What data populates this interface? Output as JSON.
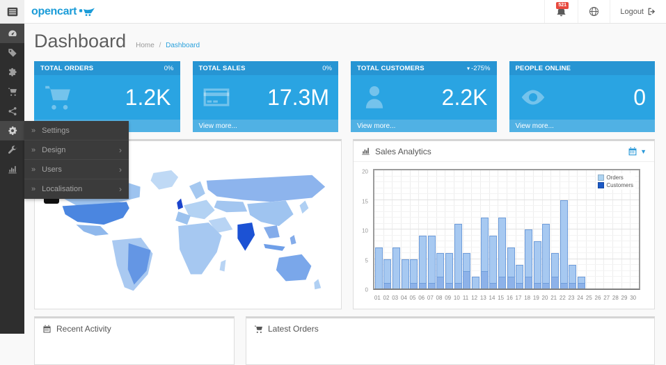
{
  "topbar": {
    "logo_text": "opencart",
    "notification_count": "521",
    "logout_label": "Logout"
  },
  "sidebar": {
    "items": [
      {
        "name": "dashboard",
        "icon": "speedometer",
        "active": true
      },
      {
        "name": "catalog",
        "icon": "tag",
        "active": false
      },
      {
        "name": "extensions",
        "icon": "puzzle",
        "active": false
      },
      {
        "name": "sales",
        "icon": "cart",
        "active": false
      },
      {
        "name": "marketing",
        "icon": "share",
        "active": false
      },
      {
        "name": "system",
        "icon": "gear",
        "active": true
      },
      {
        "name": "tools",
        "icon": "wrench",
        "active": false
      },
      {
        "name": "reports",
        "icon": "bar-chart",
        "active": false
      }
    ]
  },
  "flyout": {
    "items": [
      {
        "label": "Settings",
        "submenu": false
      },
      {
        "label": "Design",
        "submenu": true
      },
      {
        "label": "Users",
        "submenu": true
      },
      {
        "label": "Localisation",
        "submenu": true
      }
    ]
  },
  "page": {
    "title": "Dashboard",
    "breadcrumb_home": "Home",
    "breadcrumb_sep": "/",
    "breadcrumb_current": "Dashboard"
  },
  "tiles": [
    {
      "label": "TOTAL ORDERS",
      "delta": "0%",
      "caret": false,
      "value": "1.2K",
      "footer": "View more...",
      "icon": "cart"
    },
    {
      "label": "TOTAL SALES",
      "delta": "0%",
      "caret": false,
      "value": "17.3M",
      "footer": "View more...",
      "icon": "credit-card"
    },
    {
      "label": "TOTAL CUSTOMERS",
      "delta": "-275%",
      "caret": true,
      "value": "2.2K",
      "footer": "View more...",
      "icon": "person"
    },
    {
      "label": "PEOPLE ONLINE",
      "delta": "",
      "caret": false,
      "value": "0",
      "footer": "View more...",
      "icon": "eye"
    }
  ],
  "panels": {
    "sales_title": "Sales Analytics",
    "recent_title": "Recent Activity",
    "orders_title": "Latest Orders"
  },
  "colors": {
    "accent": "#2aa1dc",
    "tile_header": "#2795d3",
    "tile_body": "#2aa4e2",
    "tile_footer": "#50b1e4",
    "badge_red": "#e8493e",
    "sidebar_bg": "#2e2e2e",
    "map_highlight_dark": "#1c52d4"
  },
  "chart_data": {
    "type": "bar",
    "title": "Sales Analytics",
    "x_labels": [
      "01",
      "02",
      "03",
      "04",
      "05",
      "06",
      "07",
      "08",
      "09",
      "10",
      "11",
      "12",
      "13",
      "14",
      "15",
      "16",
      "17",
      "18",
      "19",
      "20",
      "21",
      "22",
      "23",
      "24",
      "25",
      "26",
      "27",
      "28",
      "29",
      "30"
    ],
    "ylim": [
      0,
      20
    ],
    "yticks": [
      0,
      5,
      10,
      15,
      20
    ],
    "grid": true,
    "legend_position": "top-right",
    "series": [
      {
        "name": "Orders",
        "values": [
          7,
          5,
          7,
          5,
          5,
          9,
          9,
          6,
          6,
          11,
          6,
          2,
          12,
          9,
          12,
          7,
          4,
          10,
          8,
          11,
          6,
          15,
          4,
          2,
          0,
          0,
          0,
          0,
          0,
          0
        ],
        "bar_fill": "#a7c9f1",
        "bar_border": "#6f9ddb",
        "legend_color": "#aed4f2"
      },
      {
        "name": "Customers",
        "values": [
          0,
          1,
          0,
          0,
          1,
          1,
          1,
          2,
          1,
          1,
          3,
          0,
          3,
          1,
          2,
          2,
          1,
          2,
          1,
          1,
          2,
          1,
          1,
          1,
          0,
          0,
          0,
          0,
          0,
          0
        ],
        "bar_fill": "#8db2e9",
        "bar_border": "#6f9ddb",
        "legend_color": "#1b59c6"
      }
    ]
  }
}
